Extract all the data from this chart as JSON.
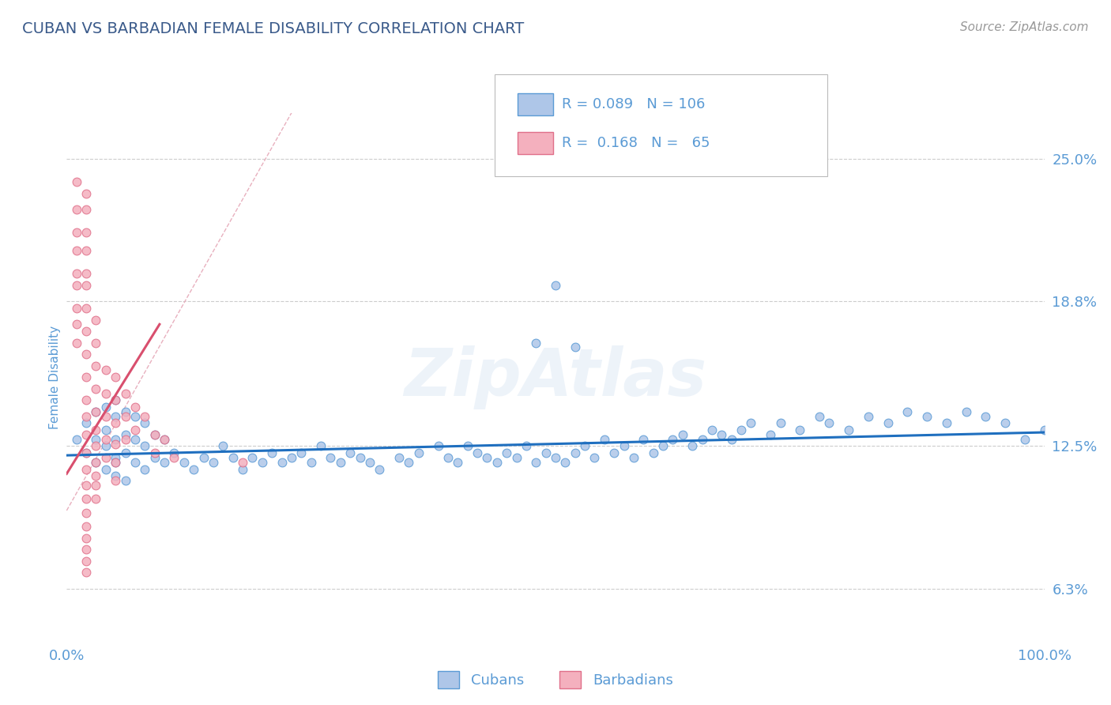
{
  "title": "CUBAN VS BARBADIAN FEMALE DISABILITY CORRELATION CHART",
  "source_text": "Source: ZipAtlas.com",
  "ylabel": "Female Disability",
  "xlim": [
    0.0,
    1.0
  ],
  "ylim": [
    0.04,
    0.27
  ],
  "yticks": [
    0.063,
    0.125,
    0.188,
    0.25
  ],
  "ytick_labels": [
    "6.3%",
    "12.5%",
    "18.8%",
    "25.0%"
  ],
  "xticks": [
    0.0,
    0.25,
    0.5,
    0.75,
    1.0
  ],
  "xtick_labels": [
    "0.0%",
    "",
    "",
    "",
    "100.0%"
  ],
  "cuban_color": "#aec6e8",
  "barbadian_color": "#f4b0be",
  "cuban_edge_color": "#5b9bd5",
  "barbadian_edge_color": "#e0708a",
  "trend_blue_color": "#1f6fbf",
  "trend_pink_color": "#d94f6e",
  "diag_color": "#e8b0be",
  "cubans_label": "Cubans",
  "barbadians_label": "Barbadians",
  "title_color": "#3a5a8a",
  "axis_label_color": "#5b9bd5",
  "tick_label_color": "#5b9bd5",
  "legend_text_color": "#5b9bd5",
  "watermark": "ZipAtlas",
  "cuban_x": [
    0.01,
    0.02,
    0.02,
    0.03,
    0.03,
    0.03,
    0.04,
    0.04,
    0.04,
    0.04,
    0.05,
    0.05,
    0.05,
    0.05,
    0.05,
    0.05,
    0.06,
    0.06,
    0.06,
    0.06,
    0.07,
    0.07,
    0.07,
    0.08,
    0.08,
    0.08,
    0.09,
    0.09,
    0.1,
    0.1,
    0.11,
    0.12,
    0.13,
    0.14,
    0.15,
    0.16,
    0.17,
    0.18,
    0.19,
    0.2,
    0.21,
    0.22,
    0.23,
    0.24,
    0.25,
    0.26,
    0.27,
    0.28,
    0.29,
    0.3,
    0.31,
    0.32,
    0.34,
    0.35,
    0.36,
    0.38,
    0.39,
    0.4,
    0.41,
    0.42,
    0.43,
    0.44,
    0.45,
    0.46,
    0.47,
    0.48,
    0.49,
    0.5,
    0.51,
    0.52,
    0.53,
    0.54,
    0.55,
    0.56,
    0.57,
    0.58,
    0.59,
    0.6,
    0.61,
    0.62,
    0.63,
    0.64,
    0.65,
    0.66,
    0.67,
    0.68,
    0.69,
    0.7,
    0.72,
    0.73,
    0.75,
    0.77,
    0.78,
    0.8,
    0.82,
    0.84,
    0.86,
    0.88,
    0.9,
    0.92,
    0.94,
    0.96,
    0.98,
    1.0,
    0.5,
    0.48,
    0.52
  ],
  "cuban_y": [
    0.128,
    0.122,
    0.135,
    0.118,
    0.128,
    0.14,
    0.115,
    0.125,
    0.132,
    0.142,
    0.112,
    0.12,
    0.128,
    0.138,
    0.145,
    0.118,
    0.11,
    0.122,
    0.13,
    0.14,
    0.118,
    0.128,
    0.138,
    0.115,
    0.125,
    0.135,
    0.12,
    0.13,
    0.118,
    0.128,
    0.122,
    0.118,
    0.115,
    0.12,
    0.118,
    0.125,
    0.12,
    0.115,
    0.12,
    0.118,
    0.122,
    0.118,
    0.12,
    0.122,
    0.118,
    0.125,
    0.12,
    0.118,
    0.122,
    0.12,
    0.118,
    0.115,
    0.12,
    0.118,
    0.122,
    0.125,
    0.12,
    0.118,
    0.125,
    0.122,
    0.12,
    0.118,
    0.122,
    0.12,
    0.125,
    0.118,
    0.122,
    0.12,
    0.118,
    0.122,
    0.125,
    0.12,
    0.128,
    0.122,
    0.125,
    0.12,
    0.128,
    0.122,
    0.125,
    0.128,
    0.13,
    0.125,
    0.128,
    0.132,
    0.13,
    0.128,
    0.132,
    0.135,
    0.13,
    0.135,
    0.132,
    0.138,
    0.135,
    0.132,
    0.138,
    0.135,
    0.14,
    0.138,
    0.135,
    0.14,
    0.138,
    0.135,
    0.128,
    0.132,
    0.195,
    0.17,
    0.168
  ],
  "barbadian_x": [
    0.01,
    0.01,
    0.01,
    0.01,
    0.01,
    0.01,
    0.01,
    0.01,
    0.01,
    0.02,
    0.02,
    0.02,
    0.02,
    0.02,
    0.02,
    0.02,
    0.02,
    0.02,
    0.02,
    0.02,
    0.02,
    0.02,
    0.02,
    0.02,
    0.02,
    0.02,
    0.02,
    0.02,
    0.02,
    0.02,
    0.02,
    0.02,
    0.03,
    0.03,
    0.03,
    0.03,
    0.03,
    0.03,
    0.03,
    0.03,
    0.03,
    0.03,
    0.03,
    0.04,
    0.04,
    0.04,
    0.04,
    0.04,
    0.05,
    0.05,
    0.05,
    0.05,
    0.05,
    0.05,
    0.06,
    0.06,
    0.06,
    0.07,
    0.07,
    0.08,
    0.09,
    0.09,
    0.1,
    0.11,
    0.18
  ],
  "barbadian_y": [
    0.24,
    0.228,
    0.218,
    0.21,
    0.2,
    0.195,
    0.185,
    0.178,
    0.17,
    0.235,
    0.228,
    0.218,
    0.21,
    0.2,
    0.195,
    0.185,
    0.175,
    0.165,
    0.155,
    0.145,
    0.138,
    0.13,
    0.122,
    0.115,
    0.108,
    0.102,
    0.096,
    0.09,
    0.085,
    0.08,
    0.075,
    0.07,
    0.18,
    0.17,
    0.16,
    0.15,
    0.14,
    0.132,
    0.125,
    0.118,
    0.112,
    0.108,
    0.102,
    0.158,
    0.148,
    0.138,
    0.128,
    0.12,
    0.155,
    0.145,
    0.135,
    0.126,
    0.118,
    0.11,
    0.148,
    0.138,
    0.128,
    0.142,
    0.132,
    0.138,
    0.13,
    0.122,
    0.128,
    0.12,
    0.118
  ],
  "cuban_trend_x": [
    0.0,
    1.0
  ],
  "cuban_trend_y": [
    0.121,
    0.131
  ],
  "barb_trend_x": [
    0.0,
    0.095
  ],
  "barb_trend_y": [
    0.113,
    0.178
  ]
}
